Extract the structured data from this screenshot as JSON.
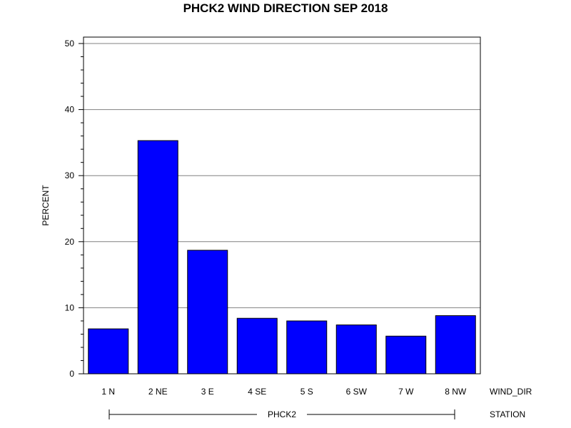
{
  "chart_data": {
    "type": "bar",
    "title": "PHCK2 WIND DIRECTION SEP 2018",
    "ylabel": "PERCENT",
    "xlabel": "WIND_DIR",
    "group_axis_label": "STATION",
    "group": "PHCK2",
    "categories": [
      "1 N",
      "2 NE",
      "3 E",
      "4 SE",
      "5 S",
      "6 SW",
      "7 W",
      "8 NW"
    ],
    "values": [
      6.8,
      35.3,
      18.7,
      8.4,
      8.0,
      7.4,
      5.7,
      8.8
    ],
    "ylim": [
      0,
      50
    ],
    "yticks": [
      "0",
      "10",
      "20",
      "30",
      "40",
      "50"
    ],
    "ytick_values": [
      0,
      10,
      20,
      30,
      40,
      50
    ],
    "grid": true,
    "bar_color": "#0000ff"
  }
}
